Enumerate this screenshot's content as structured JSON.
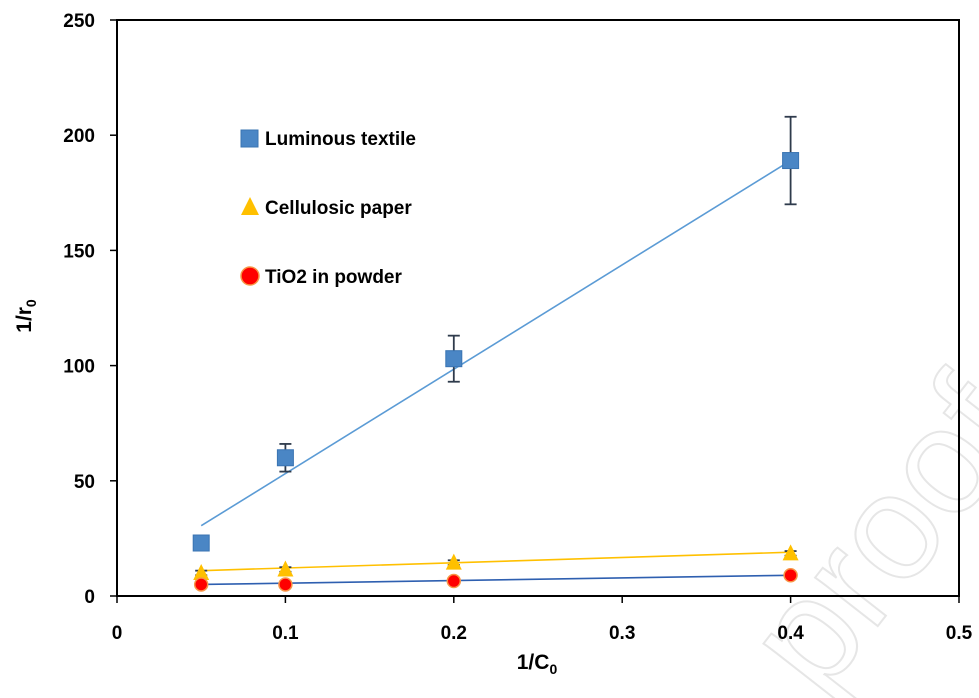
{
  "chart_data": {
    "type": "scatter",
    "xlabel": "1/C",
    "xlabel_sub": "0",
    "ylabel": "1/r",
    "ylabel_sub": "0",
    "xlim": [
      0,
      0.5
    ],
    "ylim": [
      0,
      250
    ],
    "xticks": [
      0,
      0.1,
      0.2,
      0.3,
      0.4,
      0.5
    ],
    "xtick_labels": [
      "0",
      "0.1",
      "0.2",
      "0.3",
      "0.4",
      "0.5"
    ],
    "yticks": [
      0,
      50,
      100,
      150,
      200,
      250
    ],
    "ytick_labels": [
      "0",
      "50",
      "100",
      "150",
      "200",
      "250"
    ],
    "grid": false,
    "legend_position": "top-left (inside plot)",
    "watermark": "proof",
    "series": [
      {
        "name": "Luminous textile",
        "marker": "square",
        "color": "#4a86c5",
        "line_color": "#5b9bd5",
        "x": [
          0.05,
          0.1,
          0.2,
          0.4
        ],
        "y": [
          23,
          60,
          103,
          189
        ],
        "error": [
          0,
          6,
          10,
          19
        ],
        "trendline": [
          [
            0.05,
            30.5
          ],
          [
            0.4,
            189
          ]
        ]
      },
      {
        "name": "Cellulosic paper",
        "marker": "triangle",
        "color": "#ffc000",
        "line_color": "#ffc000",
        "x": [
          0.05,
          0.1,
          0.2,
          0.4
        ],
        "y": [
          10,
          11.5,
          14.5,
          18.5
        ],
        "error": [
          1,
          1,
          1,
          1
        ],
        "trendline": [
          [
            0.05,
            11
          ],
          [
            0.4,
            19
          ]
        ]
      },
      {
        "name": "TiO2 in powder",
        "marker": "circle",
        "color": "#ff0000",
        "stroke": "#f79646",
        "line_color": "#2e5fb0",
        "x": [
          0.05,
          0.1,
          0.2,
          0.4
        ],
        "y": [
          5,
          5,
          6.5,
          9
        ],
        "error": [
          0,
          0,
          0,
          0
        ],
        "trendline": [
          [
            0.05,
            5
          ],
          [
            0.4,
            9
          ]
        ]
      }
    ]
  }
}
